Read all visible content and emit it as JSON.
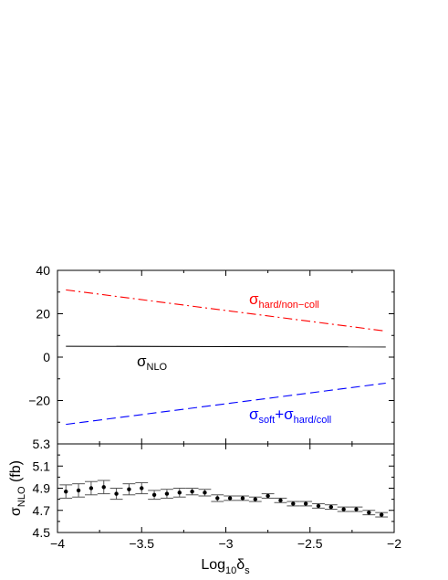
{
  "chart_data": [
    {
      "type": "line",
      "panel": "top",
      "xlim": [
        -4,
        -2
      ],
      "ylim": [
        -40,
        40
      ],
      "x_ticks": [
        -4,
        -3.5,
        -3,
        -2.5,
        -2
      ],
      "y_ticks": [
        -20,
        0,
        20,
        40
      ],
      "series": [
        {
          "name": "hard_non_coll",
          "label": {
            "main": "σ",
            "sub": "hard/non−coll"
          },
          "style": "dash-dot",
          "color": "#ff0000",
          "x": [
            -3.95,
            -2.05
          ],
          "y": [
            31.0,
            12.0
          ]
        },
        {
          "name": "nlo",
          "label": {
            "main": "σ",
            "sub": "NLO"
          },
          "style": "solid",
          "color": "#000000",
          "x": [
            -3.95,
            -2.05
          ],
          "y": [
            5.0,
            4.7
          ]
        },
        {
          "name": "soft_plus_hard_coll",
          "label": {
            "main": "σ",
            "sub1": "soft",
            "plus": "+σ",
            "sub2": "hard/coll"
          },
          "style": "dashed",
          "color": "#0000ff",
          "x": [
            -3.95,
            -2.05
          ],
          "y": [
            -31.0,
            -12.0
          ]
        }
      ],
      "grid": false
    },
    {
      "type": "scatter",
      "panel": "bottom",
      "xlabel": {
        "main": "Log",
        "sub": "10",
        "tail": "δ",
        "tail_sub": "s"
      },
      "ylabel": {
        "main": "σ",
        "sub": "NLO",
        "tail": " (fb)"
      },
      "xlim": [
        -4,
        -2
      ],
      "ylim": [
        4.5,
        5.3
      ],
      "x_ticks": [
        -4,
        -3.5,
        -3,
        -2.5,
        -2
      ],
      "x_tick_labels": [
        "−4",
        "−3.5",
        "−3",
        "−2.5",
        "−2"
      ],
      "y_ticks": [
        4.5,
        4.7,
        4.9,
        5.1,
        5.3
      ],
      "y_tick_labels": [
        "4.5",
        "4.7",
        "4.9",
        "5.1",
        "5.3"
      ],
      "points": {
        "x": [
          -3.95,
          -3.875,
          -3.8,
          -3.725,
          -3.65,
          -3.575,
          -3.5,
          -3.425,
          -3.35,
          -3.275,
          -3.2,
          -3.125,
          -3.05,
          -2.975,
          -2.9,
          -2.825,
          -2.75,
          -2.675,
          -2.6,
          -2.525,
          -2.45,
          -2.375,
          -2.3,
          -2.225,
          -2.15,
          -2.075
        ],
        "y": [
          4.87,
          4.88,
          4.9,
          4.91,
          4.85,
          4.89,
          4.9,
          4.84,
          4.85,
          4.86,
          4.87,
          4.86,
          4.81,
          4.81,
          4.81,
          4.8,
          4.83,
          4.79,
          4.76,
          4.76,
          4.74,
          4.73,
          4.71,
          4.71,
          4.68,
          4.66
        ],
        "err": [
          0.06,
          0.06,
          0.06,
          0.06,
          0.05,
          0.05,
          0.05,
          0.04,
          0.04,
          0.04,
          0.03,
          0.03,
          0.03,
          0.02,
          0.02,
          0.02,
          0.02,
          0.02,
          0.02,
          0.02,
          0.02,
          0.02,
          0.02,
          0.02,
          0.02,
          0.02
        ]
      },
      "grid": false
    }
  ],
  "top_y_tick_labels": [
    "−20",
    "0",
    "20",
    "40"
  ]
}
